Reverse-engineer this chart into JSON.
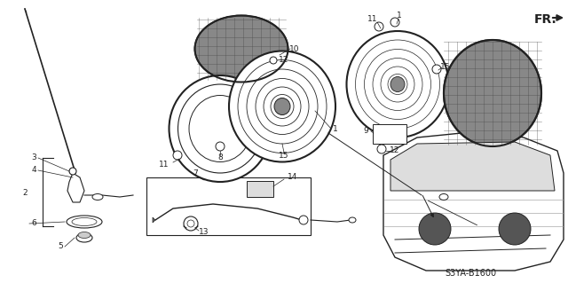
{
  "background_color": "#ffffff",
  "diagram_code": "S3YA-B1600",
  "fig_width": 6.4,
  "fig_height": 3.19,
  "dpi": 100,
  "line_color": "#222222",
  "text_color": "#222222",
  "font_size": 6.5,
  "fr_label": "FR."
}
